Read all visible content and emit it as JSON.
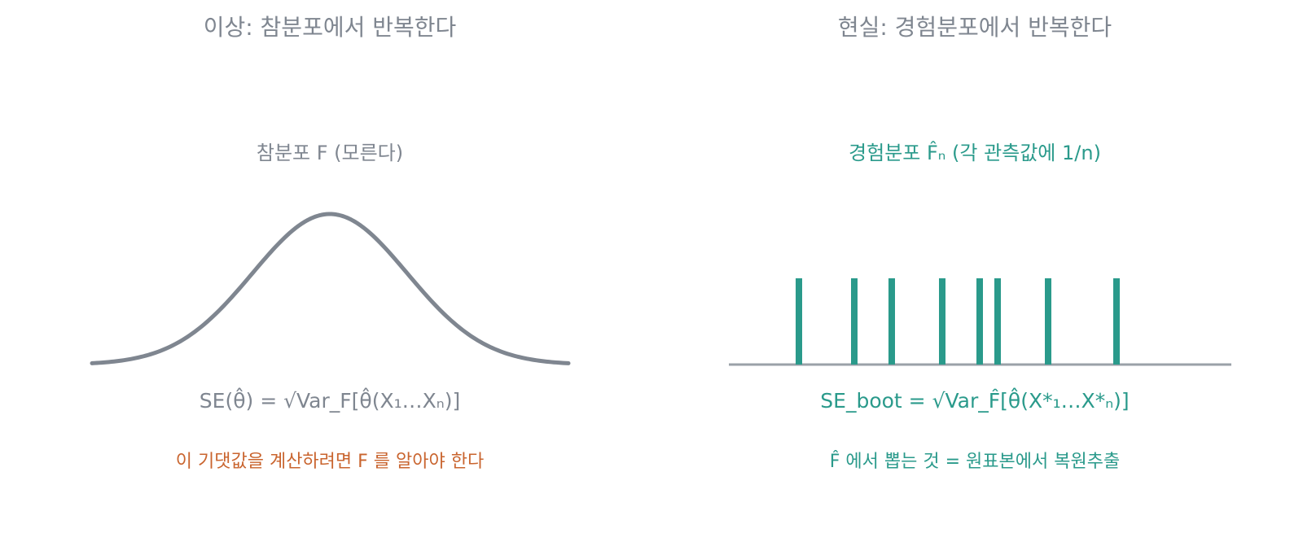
{
  "left": {
    "title": "이상: 참분포에서 반복한다",
    "distribution_label": "참분포 F (모른다)",
    "formula": "SE(θ̂) = √Var_F[θ̂(X₁…Xₙ)]",
    "note": "이 기댓값을 계산하려면 F 를 알아야 한다"
  },
  "right": {
    "title": "현실: 경험분포에서 반복한다",
    "distribution_label": "경험분포 F̂ₙ (각 관측값에 1/n)",
    "formula": "SE_boot = √Var_F̂[θ̂(X*₁…X*ₙ)]",
    "note": "F̂ 에서 뽑는 것 = 원표본에서 복원추출"
  },
  "colors": {
    "grey": "#7f8690",
    "teal": "#2a9a8b",
    "orange": "#c9642e",
    "axis": "#9aa1a8"
  }
}
